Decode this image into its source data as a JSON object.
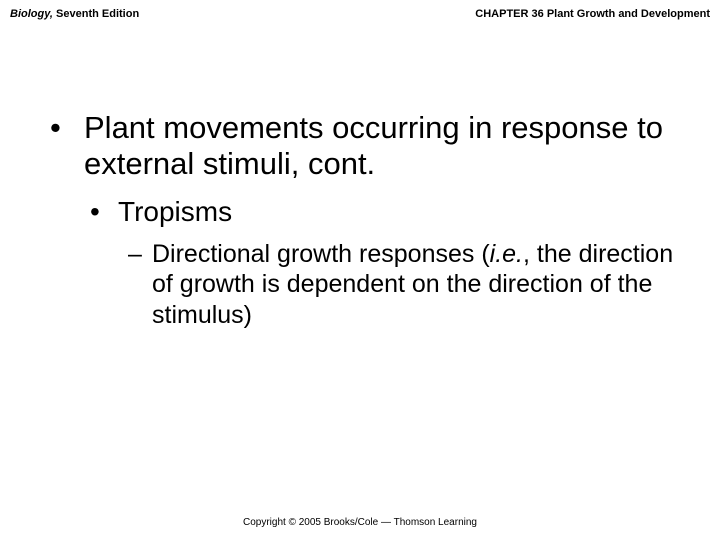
{
  "header": {
    "book_title_italic": "Biology,",
    "book_title_rest": " Seventh Edition",
    "chapter": "CHAPTER 36 Plant Growth and Development"
  },
  "content": {
    "l1_text": "Plant movements occurring in response to external stimuli, cont.",
    "l2_text": "Tropisms",
    "l3_prefix": "Directional growth responses (",
    "l3_italic": "i.e.",
    "l3_suffix": ", the direction of growth is dependent on the direction of the stimulus)"
  },
  "footer": {
    "copyright": "Copyright © 2005 Brooks/Cole — Thomson Learning"
  },
  "style": {
    "background_color": "#ffffff",
    "text_color": "#000000",
    "l1_fontsize": 31,
    "l2_fontsize": 28,
    "l3_fontsize": 25,
    "header_fontsize": 11,
    "footer_fontsize": 10
  }
}
